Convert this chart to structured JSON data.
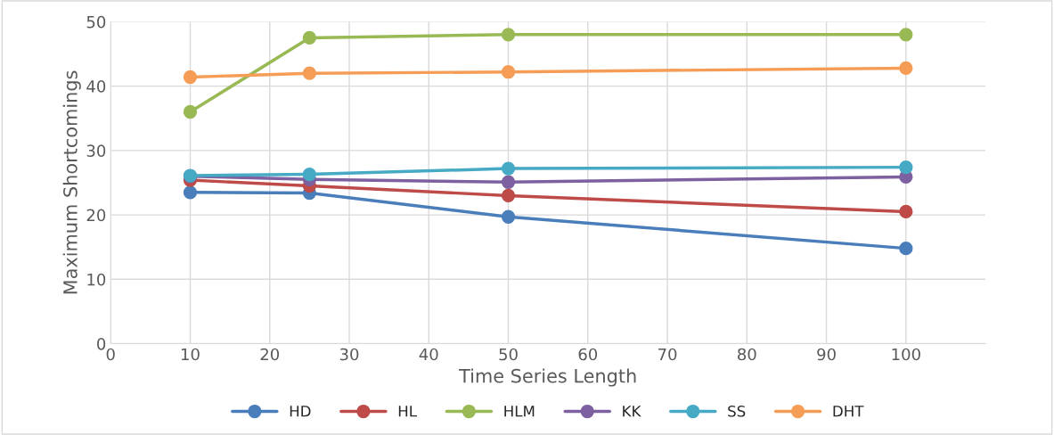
{
  "chart_data": {
    "type": "line",
    "xlabel": "Time Series Length",
    "ylabel": "Maximum Shortcomings",
    "x": [
      10,
      25,
      50,
      100
    ],
    "series": [
      {
        "name": "HD",
        "color": "#4a7ebb",
        "values": [
          23.5,
          23.4,
          19.7,
          14.8
        ]
      },
      {
        "name": "HL",
        "color": "#be4b48",
        "values": [
          25.4,
          24.5,
          23.0,
          20.5
        ]
      },
      {
        "name": "HLM",
        "color": "#98b954",
        "values": [
          36.0,
          47.5,
          48.0,
          48.0
        ]
      },
      {
        "name": "KK",
        "color": "#7d60a0",
        "values": [
          26.0,
          25.5,
          25.1,
          25.9
        ]
      },
      {
        "name": "SS",
        "color": "#46aac5",
        "values": [
          26.1,
          26.3,
          27.2,
          27.4
        ]
      },
      {
        "name": "DHT",
        "color": "#f59d56",
        "values": [
          41.4,
          42.0,
          42.2,
          42.8
        ]
      }
    ],
    "xlim": [
      0,
      110
    ],
    "xticks": [
      0,
      10,
      20,
      30,
      40,
      50,
      60,
      70,
      80,
      90,
      100
    ],
    "ylim": [
      0,
      50
    ],
    "yticks": [
      0,
      10,
      20,
      30,
      40,
      50
    ],
    "grid": true,
    "legend": "bottom",
    "marker": "circle",
    "line_style": "solid"
  }
}
